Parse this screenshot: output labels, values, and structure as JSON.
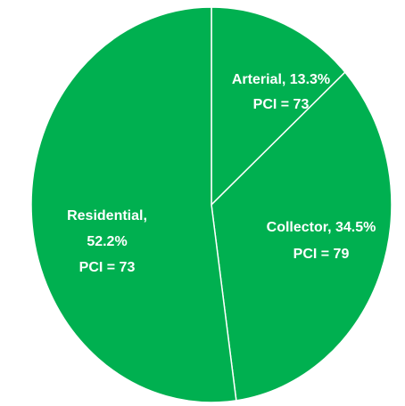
{
  "chart_data": {
    "type": "pie",
    "values": [
      13.3,
      34.5,
      52.2
    ],
    "value_labels": [
      "Arterial, 13.3%",
      "Collector, 34.5%",
      "Residential, 52.2%"
    ],
    "annotations": [
      "PCI = 73",
      "PCI = 79",
      "PCI = 73"
    ],
    "colors": [
      "#00b050",
      "#00b050",
      "#00b050"
    ]
  }
}
